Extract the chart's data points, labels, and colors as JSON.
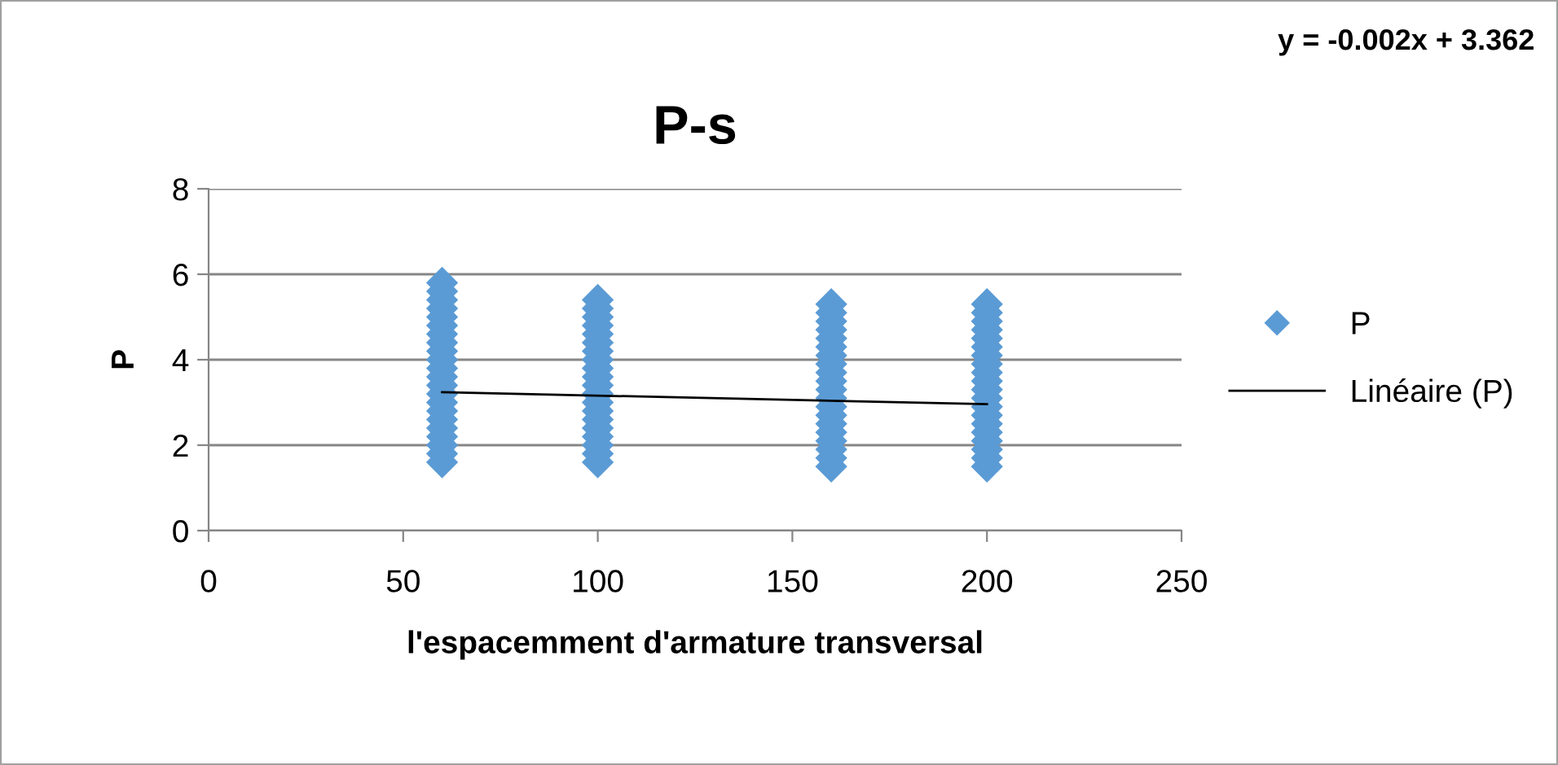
{
  "chart_data": {
    "type": "scatter",
    "title": "P-s",
    "xlabel": "l'espacemment d'armature transversal",
    "ylabel": "P",
    "annotations": [
      "y = -0.002x + 3.362"
    ],
    "xlim": [
      0,
      250
    ],
    "xticks": [
      0,
      50,
      100,
      150,
      200,
      250
    ],
    "ylim": [
      0,
      8
    ],
    "yticks": [
      0,
      2,
      4,
      6,
      8
    ],
    "grid": "y",
    "legend": "right",
    "series": [
      {
        "name": "P",
        "color": "#5b9bd5",
        "marker": "diamond",
        "x": [
          60,
          60,
          60,
          60,
          60,
          60,
          60,
          60,
          60,
          60,
          60,
          60,
          60,
          60,
          60,
          60,
          60,
          60,
          60,
          60,
          60,
          60,
          100,
          100,
          100,
          100,
          100,
          100,
          100,
          100,
          100,
          100,
          100,
          100,
          100,
          100,
          100,
          100,
          100,
          100,
          100,
          100,
          160,
          160,
          160,
          160,
          160,
          160,
          160,
          160,
          160,
          160,
          160,
          160,
          160,
          160,
          160,
          160,
          160,
          160,
          160,
          160,
          200,
          200,
          200,
          200,
          200,
          200,
          200,
          200,
          200,
          200,
          200,
          200,
          200,
          200,
          200,
          200,
          200,
          200,
          200,
          200
        ],
        "values": [
          1.6,
          1.8,
          2.0,
          2.2,
          2.4,
          2.6,
          2.8,
          3.0,
          3.2,
          3.4,
          3.6,
          3.8,
          4.0,
          4.2,
          4.4,
          4.6,
          4.8,
          5.0,
          5.2,
          5.4,
          5.6,
          5.8,
          1.6,
          1.8,
          2.0,
          2.2,
          2.4,
          2.6,
          2.8,
          3.0,
          3.2,
          3.4,
          3.6,
          3.8,
          4.0,
          4.2,
          4.4,
          4.6,
          4.8,
          5.0,
          5.2,
          5.4,
          1.5,
          1.7,
          1.9,
          2.1,
          2.3,
          2.5,
          2.7,
          2.9,
          3.1,
          3.3,
          3.5,
          3.7,
          3.9,
          4.1,
          4.3,
          4.5,
          4.7,
          4.9,
          5.1,
          5.3,
          1.5,
          1.7,
          1.9,
          2.1,
          2.3,
          2.5,
          2.7,
          2.9,
          3.1,
          3.3,
          3.5,
          3.7,
          3.9,
          4.1,
          4.3,
          4.5,
          4.7,
          4.9,
          5.1,
          5.3
        ]
      },
      {
        "name": "Linéaire (P)",
        "color": "#000000",
        "type": "line",
        "marker": "none",
        "x": [
          60,
          200
        ],
        "values": [
          3.24,
          2.96
        ]
      }
    ]
  }
}
